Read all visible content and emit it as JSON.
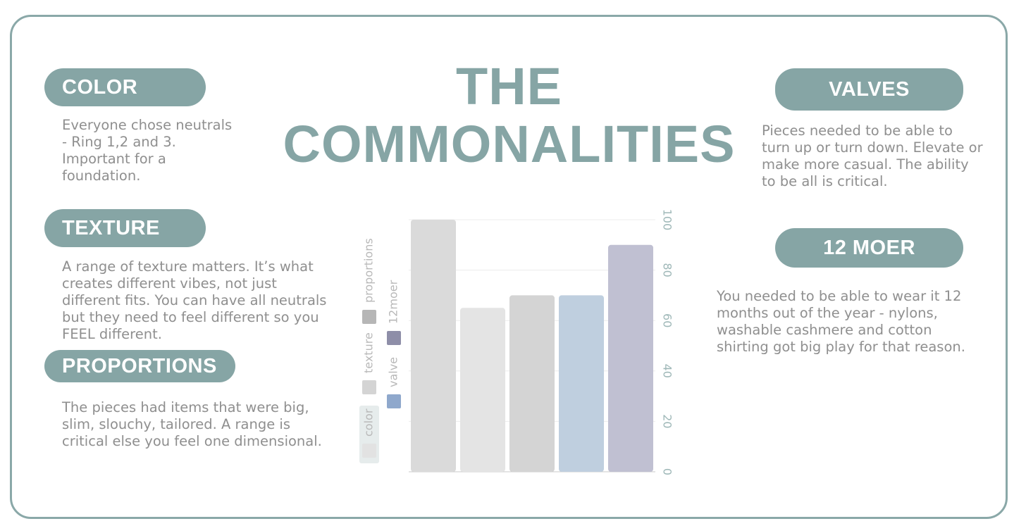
{
  "title_line1": "THE",
  "title_line2": "COMMONALITIES",
  "sections": {
    "color": {
      "heading": "COLOR",
      "text": "Everyone chose neutrals\n- Ring 1,2 and 3.\nImportant for a\nfoundation."
    },
    "texture": {
      "heading": "TEXTURE",
      "text": "A range of texture matters.  It’s what\ncreates different vibes, not just\ndifferent fits.  You can have all neutrals\nbut they need to feel different so you\nFEEL different."
    },
    "proportions": {
      "heading": "PROPORTIONS",
      "text": "The pieces had items that were big,\nslim, slouchy, tailored.  A range is\ncritical else you feel one dimensional."
    },
    "valves": {
      "heading": "VALVES",
      "text": "Pieces needed to be able to\nturn up or turn down.  Elevate or\nmake more casual.  The ability\nto be all is critical."
    },
    "moer": {
      "heading": "12 MOER",
      "text": "You needed to be able to wear it 12\nmonths out of the year - nylons,\nwashable cashmere and cotton\nshirting got big play for that reason."
    }
  },
  "colors": {
    "accent": "#86a5a5",
    "text": "#8f8f8f"
  },
  "chart_data": {
    "type": "bar",
    "orientation": "rotated 90 degrees (value axis on the right)",
    "categories": [
      "",
      "",
      "",
      "",
      ""
    ],
    "values": [
      100,
      65,
      70,
      70,
      90
    ],
    "bar_colors": [
      "#dadada",
      "#e4e4e4",
      "#d4d4d4",
      "#bfcfdf",
      "#c0c0d2"
    ],
    "ylim": [
      0,
      100
    ],
    "yticks": [
      "0",
      "20",
      "40",
      "60",
      "80",
      "100"
    ],
    "grid": true,
    "legend_position": "left",
    "legend": [
      {
        "label": "color",
        "color": "#e2e2e2"
      },
      {
        "label": "texture",
        "color": "#d4d4d4"
      },
      {
        "label": "proportions",
        "color": "#b6b6b6"
      },
      {
        "label": "valve",
        "color": "#8fa8cc"
      },
      {
        "label": "12moer",
        "color": "#8e8ea8"
      }
    ]
  }
}
